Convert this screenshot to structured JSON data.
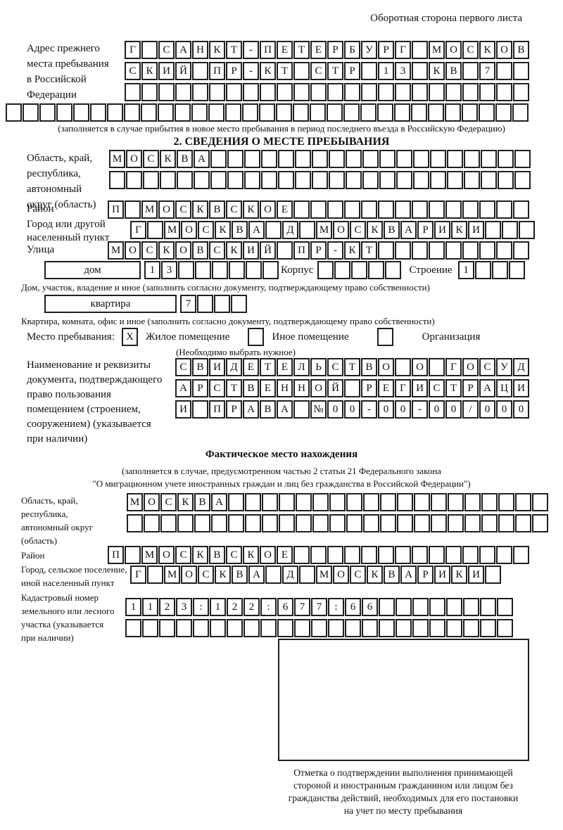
{
  "header_note": "Оборотная сторона первого листа",
  "prev_address": {
    "label_lines": [
      "Адрес прежнего",
      "места пребывания",
      "в Российской",
      "Федерации"
    ],
    "row1": {
      "text": "Г САНКТ-ПЕТЕРБУРГ МОСКОВ",
      "len": 24
    },
    "row2": {
      "text": "СКИЙ ПР-КТ СТР 13 КВ 7",
      "len": 24
    },
    "row3": {
      "text": "",
      "len": 24
    },
    "row4": {
      "text": "",
      "len": 31
    },
    "note": "(заполняется в случае прибытия в новое место пребывания в период последнего въезда в Российскую Федерацию)"
  },
  "section2": {
    "title": "2. СВЕДЕНИЯ О МЕСТЕ ПРЕБЫВАНИЯ",
    "oblast": {
      "label_lines": [
        "Область, край,",
        "республика,",
        "автономный",
        "округ (область)"
      ],
      "row1": {
        "text": "МОСКВА",
        "len": 25
      },
      "row2": {
        "text": "",
        "len": 25
      }
    },
    "raion": {
      "label": "Район",
      "row": {
        "text": "П МОСКВСКОЕ",
        "len": 25
      }
    },
    "gorod": {
      "label_lines": [
        "Город или другой",
        "населенный пункт"
      ],
      "row": {
        "text": "Г МОСКВА Д МОСКВАРИКИ",
        "len": 24
      }
    },
    "ulitsa": {
      "label": "Улица",
      "row": {
        "text": "МОСКОВСКИЙ ПР-КТ",
        "len": 25
      }
    },
    "dom": {
      "box_label": "дом",
      "cells": {
        "text": "13",
        "len": 8
      },
      "korpus_label": "Корпус",
      "korpus_cells": {
        "text": "",
        "len": 5
      },
      "stroenie_label": "Строение",
      "stroenie_cells": {
        "text": "1",
        "len": 4
      },
      "note": "Дом, участок, владение и иное (заполнить согласно документу, подтверждающему право собственности)"
    },
    "kvartira": {
      "box_label": "квартира",
      "cells": {
        "text": "7",
        "len": 4
      },
      "note": "Квартира, комната, офис и иное (заполнить согласно документу, подтверждающему право собственности)"
    },
    "mesto": {
      "label": "Место пребывания:",
      "cb1": {
        "text": "X",
        "len": 1
      },
      "opt1": "Жилое помещение",
      "cb2": {
        "text": "",
        "len": 1
      },
      "opt2": "Иное помещение",
      "cb3": {
        "text": "",
        "len": 1
      },
      "opt3": "Организация",
      "note": "(Необходимо выбрать нужное)"
    },
    "doc": {
      "label_lines": [
        "Наименование и реквизиты",
        "документа, подтверждающего",
        "право пользования",
        "помещением (строением,",
        "сооружением) (указывается",
        "при наличии)"
      ],
      "row1": {
        "text": "СВИДЕТЕЛЬСТВО О ГОСУД",
        "len": 21
      },
      "row2": {
        "text": "АРСТВЕННОЙ РЕГИСТРАЦИ",
        "len": 21
      },
      "row3": {
        "text": "И ПРАВА №00-00-00/000",
        "len": 21
      }
    }
  },
  "fact": {
    "title": "Фактическое место нахождения",
    "note_line1": "(заполняется в случае, предусмотренном частью 2 статьи 21 Федерального закона",
    "note_line2": "\"О миграционном учете иностранных граждан и лиц без гражданства в Российской Федерации\")",
    "oblast": {
      "label_lines": [
        "Область, край,",
        "республика,",
        "автономный округ",
        "(область)"
      ],
      "row1": {
        "text": "МОСКВА",
        "len": 25
      },
      "row2": {
        "text": "",
        "len": 25
      }
    },
    "raion": {
      "label": "Район",
      "row": {
        "text": "П МОСКВСКОЕ",
        "len": 25
      }
    },
    "gorod": {
      "label_lines": [
        "Город, сельское поселение,",
        "иной населенный пункт"
      ],
      "row": {
        "text": "Г МОСКВА Д МОСКВАРИКИ",
        "len": 22
      }
    },
    "kadastr": {
      "label_lines": [
        "Кадастровый номер",
        "земельного или лесного",
        "участка (указывается",
        "при наличии)"
      ],
      "row1": {
        "text": "1123:122:677:66",
        "len": 23
      },
      "row2": {
        "text": "",
        "len": 23
      }
    },
    "stamp_caption_lines": [
      "Отметка о подтверждении выполнения принимающей",
      "стороной и иностранным гражданином или лицом без",
      "гражданства действий, необходимых для его постановки",
      "на учет по месту пребывания"
    ]
  }
}
